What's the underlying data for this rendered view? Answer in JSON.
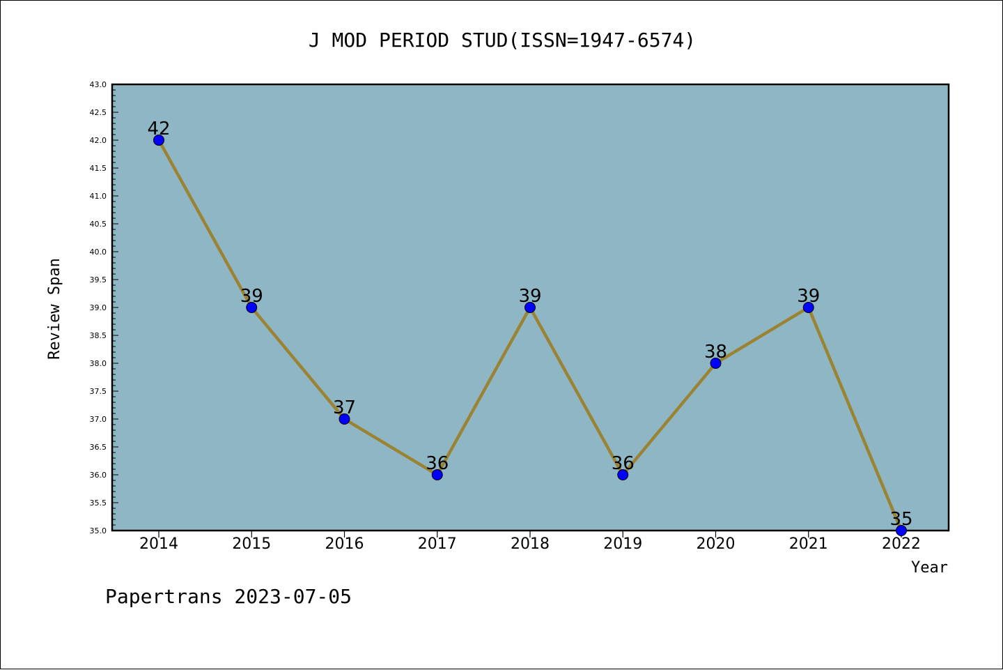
{
  "chart_data": {
    "type": "line",
    "title": "J MOD PERIOD STUD(ISSN=1947-6574)",
    "xlabel": "Year",
    "ylabel": "Review Span",
    "categories": [
      "2014",
      "2015",
      "2016",
      "2017",
      "2018",
      "2019",
      "2020",
      "2021",
      "2022"
    ],
    "series": [
      {
        "values": [
          42,
          39,
          37,
          36,
          39,
          36,
          38,
          39,
          35
        ]
      }
    ],
    "data_labels": [
      "42",
      "39",
      "37",
      "36",
      "39",
      "36",
      "38",
      "39",
      "35"
    ],
    "ylim": [
      35.0,
      43.0
    ],
    "yticks": [
      "35.0",
      "35.5",
      "36.0",
      "36.5",
      "37.0",
      "37.5",
      "38.0",
      "38.5",
      "39.0",
      "39.5",
      "40.0",
      "40.5",
      "41.0",
      "41.5",
      "42.0",
      "42.5",
      "43.0"
    ],
    "grid": false,
    "legend": "none",
    "footer": "Papertrans 2023-07-05",
    "colors": {
      "plot_background": "#8fb6c4",
      "line": "#9a8433",
      "marker": "#0000ff"
    }
  }
}
